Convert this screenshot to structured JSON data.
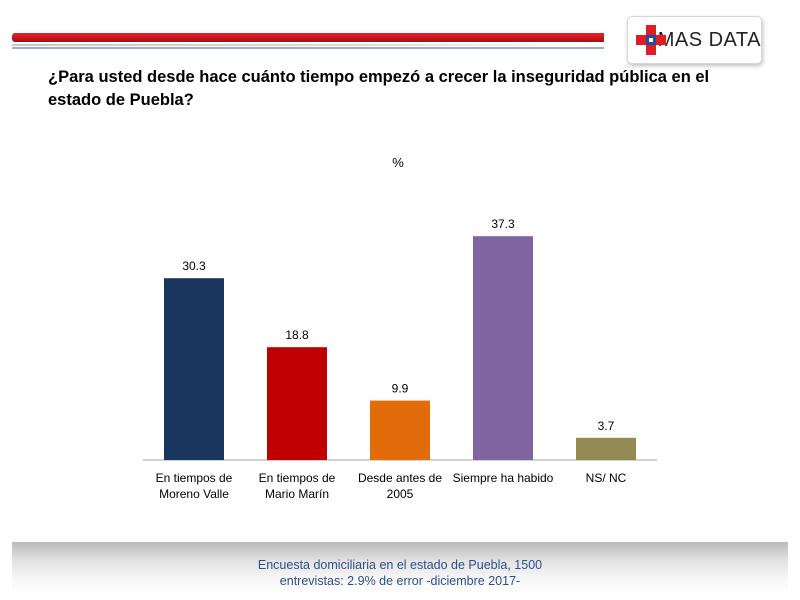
{
  "header": {
    "logo_text": "MAS DATA"
  },
  "question": "¿Para usted desde hace cuánto tiempo empezó a crecer la inseguridad pública en el estado de Puebla?",
  "chart_data": {
    "type": "bar",
    "title": "%",
    "categories": [
      [
        "En tiempos de",
        "Moreno Valle"
      ],
      [
        "En tiempos de",
        "Mario Marín"
      ],
      [
        "Desde antes de",
        "2005"
      ],
      [
        "Siempre ha habido"
      ],
      [
        "NS/ NC"
      ]
    ],
    "values": [
      30.3,
      18.8,
      9.9,
      37.3,
      3.7
    ],
    "value_labels": [
      "30.3",
      "18.8",
      "9.9",
      "37.3",
      "3.7"
    ],
    "colors": [
      "#1b365d",
      "#c00000",
      "#e36c0a",
      "#8064a2",
      "#948a54"
    ],
    "ylim": [
      0,
      40
    ],
    "grid": false,
    "legend": "none"
  },
  "footer": {
    "line1": "Encuesta domiciliaria en el estado de Puebla, 1500",
    "line2": "entrevistas: 2.9% de error -diciembre 2017-"
  }
}
